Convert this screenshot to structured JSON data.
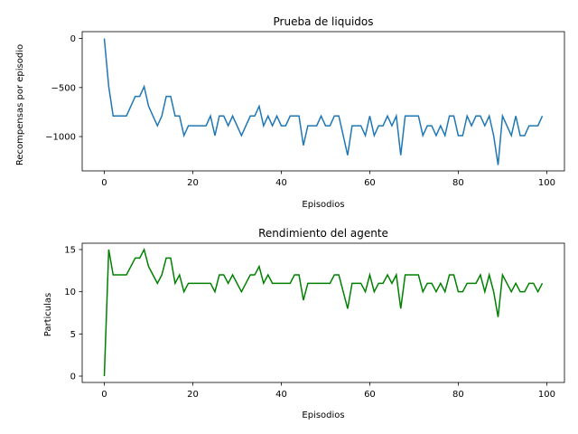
{
  "chart_data": [
    {
      "type": "line",
      "title": "Prueba de liquidos",
      "xlabel": "Episodios",
      "ylabel": "Recompensas por episodio",
      "xlim": [
        -5,
        104
      ],
      "ylim": [
        -1350,
        70
      ],
      "xticks": [
        0,
        20,
        40,
        60,
        80,
        100
      ],
      "yticks": [
        0,
        -500,
        -1000
      ],
      "ytick_labels": [
        "0",
        "−500",
        "−1000"
      ],
      "color": "#1f77b4",
      "x": [
        0,
        1,
        2,
        3,
        4,
        5,
        6,
        7,
        8,
        9,
        10,
        11,
        12,
        13,
        14,
        15,
        16,
        17,
        18,
        19,
        20,
        21,
        22,
        23,
        24,
        25,
        26,
        27,
        28,
        29,
        30,
        31,
        32,
        33,
        34,
        35,
        36,
        37,
        38,
        39,
        40,
        41,
        42,
        43,
        44,
        45,
        46,
        47,
        48,
        49,
        50,
        51,
        52,
        53,
        54,
        55,
        56,
        57,
        58,
        59,
        60,
        61,
        62,
        63,
        64,
        65,
        66,
        67,
        68,
        69,
        70,
        71,
        72,
        73,
        74,
        75,
        76,
        77,
        78,
        79,
        80,
        81,
        82,
        83,
        84,
        85,
        86,
        87,
        88,
        89,
        90,
        91,
        92,
        93,
        94,
        95,
        96,
        97,
        98,
        99
      ],
      "values": [
        0,
        -490,
        -790,
        -790,
        -790,
        -790,
        -690,
        -590,
        -590,
        -490,
        -690,
        -790,
        -890,
        -790,
        -590,
        -590,
        -790,
        -790,
        -990,
        -890,
        -890,
        -890,
        -890,
        -890,
        -790,
        -990,
        -790,
        -790,
        -890,
        -790,
        -890,
        -990,
        -890,
        -790,
        -790,
        -690,
        -890,
        -790,
        -890,
        -790,
        -890,
        -890,
        -790,
        -790,
        -790,
        -1090,
        -890,
        -890,
        -890,
        -790,
        -890,
        -890,
        -790,
        -790,
        -990,
        -1190,
        -890,
        -890,
        -890,
        -990,
        -790,
        -990,
        -890,
        -890,
        -790,
        -890,
        -790,
        -1190,
        -790,
        -790,
        -790,
        -790,
        -990,
        -890,
        -890,
        -990,
        -890,
        -990,
        -790,
        -790,
        -990,
        -990,
        -790,
        -890,
        -790,
        -790,
        -890,
        -790,
        -990,
        -1290,
        -790,
        -890,
        -990,
        -790,
        -990,
        -990,
        -890,
        -890,
        -890,
        -790
      ]
    },
    {
      "type": "line",
      "title": "Rendimiento del agente",
      "xlabel": "Episodios",
      "ylabel": "Particulas",
      "xlim": [
        -5,
        104
      ],
      "ylim": [
        -0.75,
        15.75
      ],
      "xticks": [
        0,
        20,
        40,
        60,
        80,
        100
      ],
      "yticks": [
        0,
        5,
        10,
        15
      ],
      "ytick_labels": [
        "0",
        "5",
        "10",
        "15"
      ],
      "color": "#008000",
      "x": [
        0,
        1,
        2,
        3,
        4,
        5,
        6,
        7,
        8,
        9,
        10,
        11,
        12,
        13,
        14,
        15,
        16,
        17,
        18,
        19,
        20,
        21,
        22,
        23,
        24,
        25,
        26,
        27,
        28,
        29,
        30,
        31,
        32,
        33,
        34,
        35,
        36,
        37,
        38,
        39,
        40,
        41,
        42,
        43,
        44,
        45,
        46,
        47,
        48,
        49,
        50,
        51,
        52,
        53,
        54,
        55,
        56,
        57,
        58,
        59,
        60,
        61,
        62,
        63,
        64,
        65,
        66,
        67,
        68,
        69,
        70,
        71,
        72,
        73,
        74,
        75,
        76,
        77,
        78,
        79,
        80,
        81,
        82,
        83,
        84,
        85,
        86,
        87,
        88,
        89,
        90,
        91,
        92,
        93,
        94,
        95,
        96,
        97,
        98,
        99
      ],
      "values": [
        0,
        15,
        12,
        12,
        12,
        12,
        13,
        14,
        14,
        15,
        13,
        12,
        11,
        12,
        14,
        14,
        11,
        12,
        10,
        11,
        11,
        11,
        11,
        11,
        11,
        10,
        12,
        12,
        11,
        12,
        11,
        10,
        11,
        12,
        12,
        13,
        11,
        12,
        11,
        11,
        11,
        11,
        11,
        12,
        12,
        9,
        11,
        11,
        11,
        11,
        11,
        11,
        12,
        12,
        10,
        8,
        11,
        11,
        11,
        10,
        12,
        10,
        11,
        11,
        12,
        11,
        12,
        8,
        12,
        12,
        12,
        12,
        10,
        11,
        11,
        10,
        11,
        10,
        12,
        12,
        10,
        10,
        11,
        11,
        11,
        12,
        10,
        12,
        10,
        7,
        12,
        11,
        10,
        11,
        10,
        10,
        11,
        11,
        10,
        11
      ]
    }
  ]
}
